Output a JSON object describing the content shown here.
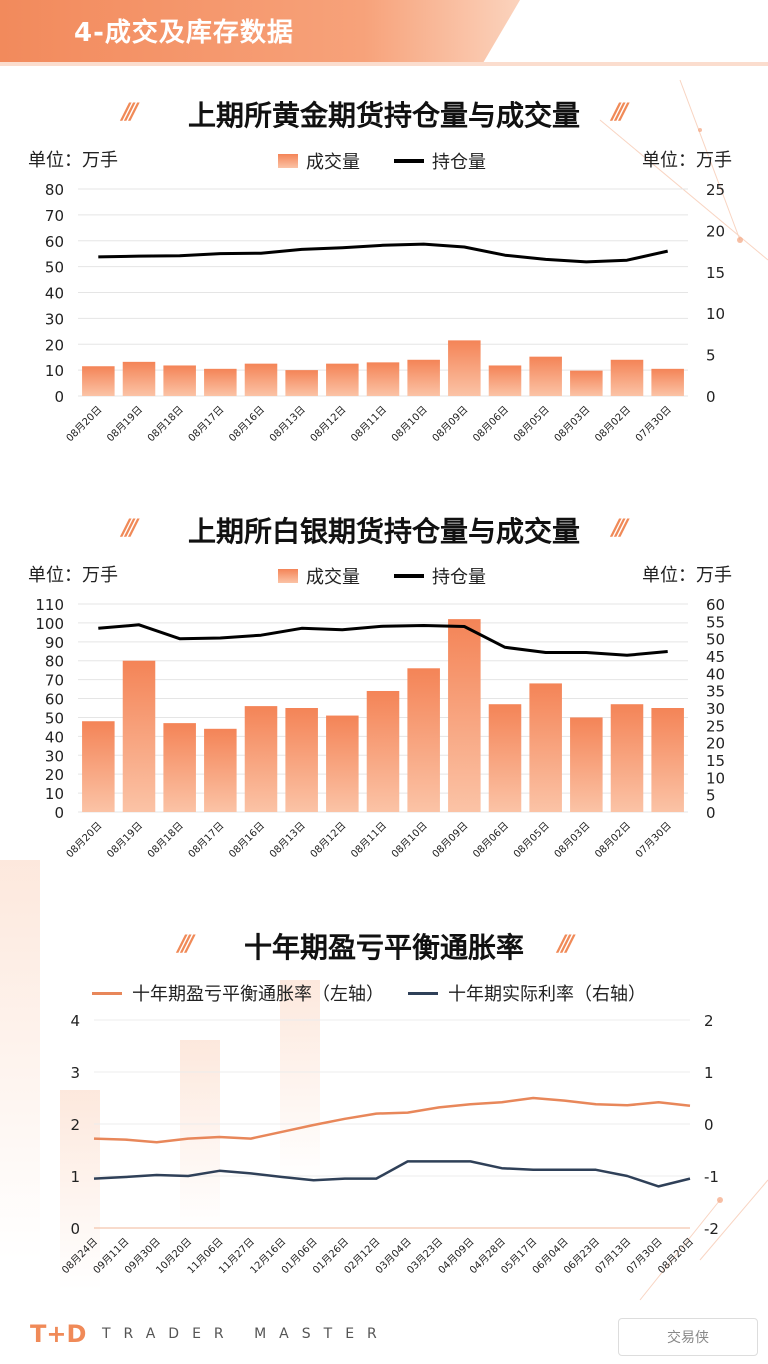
{
  "section": {
    "title": "4-成交及库存数据"
  },
  "chart1": {
    "title": "上期所黄金期货持仓量与成交量",
    "unit_left": "单位：万手",
    "unit_right": "单位：万手",
    "legend_bar": "成交量",
    "legend_line": "持仓量"
  },
  "chart2": {
    "title": "上期所白银期货持仓量与成交量",
    "unit_left": "单位：万手",
    "unit_right": "单位：万手",
    "legend_bar": "成交量",
    "legend_line": "持仓量"
  },
  "chart3": {
    "title": "十年期盈亏平衡通胀率",
    "legend_a": "十年期盈亏平衡通胀率（左轴）",
    "legend_b": "十年期实际利率（右轴）"
  },
  "footer": {
    "brand": "T+D",
    "tagline": "TRADER MASTER",
    "badge": "交易侠"
  },
  "colors": {
    "accent": "#f08a58",
    "bar_top": "#f48457",
    "bar_bottom": "#fbc3a6",
    "line_black": "#000000",
    "series_orange": "#e8875a",
    "series_navy": "#2f4058"
  },
  "chart_data": [
    {
      "type": "bar",
      "title": "上期所黄金期货持仓量与成交量",
      "categories": [
        "08月20日",
        "08月19日",
        "08月18日",
        "08月17日",
        "08月16日",
        "08月13日",
        "08月12日",
        "08月11日",
        "08月10日",
        "08月09日",
        "08月06日",
        "08月05日",
        "08月03日",
        "08月02日",
        "07月30日"
      ],
      "series": [
        {
          "name": "成交量",
          "axis": "left",
          "kind": "bar",
          "values": [
            11.5,
            13.2,
            11.8,
            10.5,
            12.5,
            10.0,
            12.5,
            13.0,
            14.0,
            21.5,
            11.8,
            15.2,
            9.8,
            14.0,
            10.5
          ]
        },
        {
          "name": "持仓量",
          "axis": "right",
          "kind": "line",
          "values": [
            16.8,
            16.9,
            16.95,
            17.2,
            17.25,
            17.7,
            17.9,
            18.2,
            18.35,
            18.0,
            17.0,
            16.5,
            16.2,
            16.4,
            17.5
          ]
        }
      ],
      "ylim_left": [
        0,
        80
      ],
      "yticks_left": [
        0,
        10,
        20,
        30,
        40,
        50,
        60,
        70,
        80
      ],
      "ylim_right": [
        0,
        25
      ],
      "yticks_right": [
        0,
        5,
        10,
        15,
        20,
        25
      ]
    },
    {
      "type": "bar",
      "title": "上期所白银期货持仓量与成交量",
      "categories": [
        "08月20日",
        "08月19日",
        "08月18日",
        "08月17日",
        "08月16日",
        "08月13日",
        "08月12日",
        "08月11日",
        "08月10日",
        "08月09日",
        "08月06日",
        "08月05日",
        "08月03日",
        "08月02日",
        "07月30日"
      ],
      "series": [
        {
          "name": "成交量",
          "axis": "left",
          "kind": "bar",
          "values": [
            48,
            80,
            47,
            44,
            56,
            55,
            51,
            64,
            76,
            102,
            57,
            68,
            50,
            57,
            55
          ]
        },
        {
          "name": "持仓量",
          "axis": "right",
          "kind": "line",
          "values": [
            53,
            54,
            50,
            50.2,
            51,
            53,
            52.6,
            53.6,
            53.8,
            53.5,
            47.5,
            46,
            46,
            45.2,
            46.3
          ]
        }
      ],
      "ylim_left": [
        0,
        110
      ],
      "yticks_left": [
        0,
        10,
        20,
        30,
        40,
        50,
        60,
        70,
        80,
        90,
        100,
        110
      ],
      "ylim_right": [
        0,
        60
      ],
      "yticks_right": [
        0,
        5,
        10,
        15,
        20,
        25,
        30,
        35,
        40,
        45,
        50,
        55,
        60
      ]
    },
    {
      "type": "line",
      "title": "十年期盈亏平衡通胀率",
      "x": [
        "08月24日",
        "09月11日",
        "09月30日",
        "10月20日",
        "11月06日",
        "11月27日",
        "12月16日",
        "01月06日",
        "01月26日",
        "02月12日",
        "03月04日",
        "03月23日",
        "04月09日",
        "04月28日",
        "05月17日",
        "06月04日",
        "06月23日",
        "07月13日",
        "07月30日",
        "08月20日"
      ],
      "series": [
        {
          "name": "十年期盈亏平衡通胀率（左轴）",
          "axis": "left",
          "values": [
            1.72,
            1.7,
            1.65,
            1.72,
            1.75,
            1.72,
            1.85,
            1.98,
            2.1,
            2.2,
            2.22,
            2.32,
            2.38,
            2.42,
            2.5,
            2.45,
            2.38,
            2.36,
            2.42,
            2.35
          ]
        },
        {
          "name": "十年期实际利率（右轴）",
          "axis": "right",
          "values": [
            -1.05,
            -1.02,
            -0.98,
            -1.0,
            -0.9,
            -0.95,
            -1.02,
            -1.08,
            -1.05,
            -1.05,
            -0.72,
            -0.72,
            -0.72,
            -0.85,
            -0.88,
            -0.88,
            -0.88,
            -1.0,
            -1.2,
            -1.05
          ]
        }
      ],
      "ylim_left": [
        0,
        4
      ],
      "yticks_left": [
        0,
        1,
        2,
        3,
        4
      ],
      "ylim_right": [
        -2,
        2
      ],
      "yticks_right": [
        -2,
        -1,
        0,
        1,
        2
      ]
    }
  ]
}
